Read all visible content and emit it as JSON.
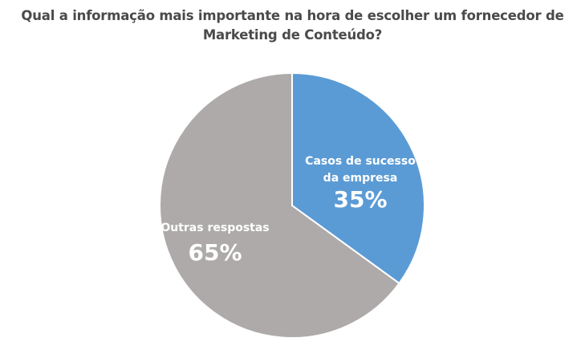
{
  "chart_data": {
    "type": "pie",
    "title_lines": [
      "Qual a informação mais importante na hora de escolher um fornecedor de",
      "Marketing de Conteúdo?"
    ],
    "slices": [
      {
        "label_lines": [
          "Casos de sucesso",
          "da empresa"
        ],
        "value": 35,
        "value_label": "35%",
        "color": "#5b9bd5"
      },
      {
        "label_lines": [
          "Outras respostas"
        ],
        "value": 65,
        "value_label": "65%",
        "color": "#aeaaaa"
      }
    ],
    "start": "12 o'clock",
    "direction": "clockwise"
  }
}
